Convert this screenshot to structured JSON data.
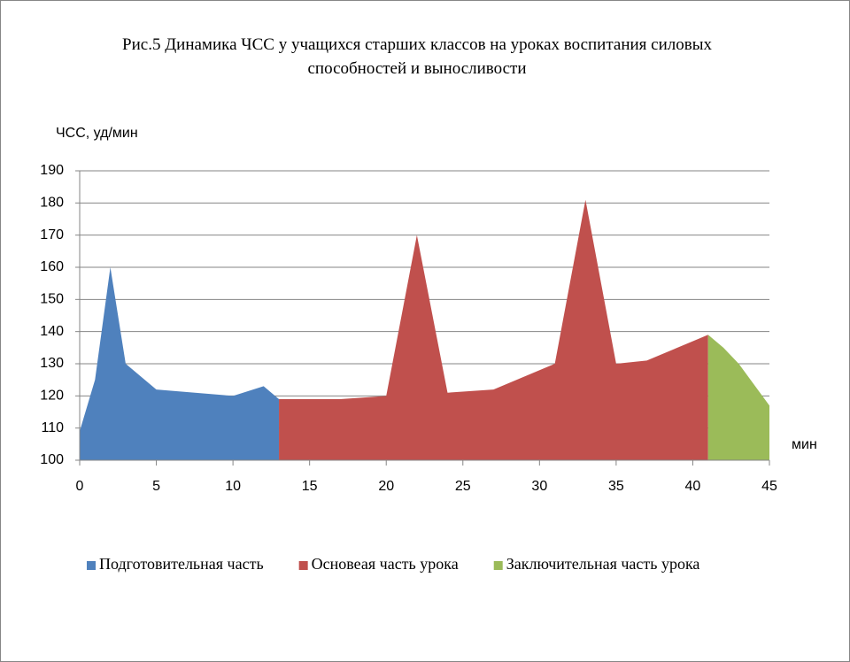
{
  "chart_data": {
    "type": "area",
    "title": "Рис.5  Динамика ЧСС у учащихся старших классов на уроках воспитания силовых способностей и выносливости",
    "y_label": "ЧСС, уд/мин",
    "x_label": "мин",
    "xlim": [
      0,
      45
    ],
    "xticks": [
      0,
      5,
      10,
      15,
      20,
      25,
      30,
      35,
      40,
      45
    ],
    "ylim": [
      100,
      190
    ],
    "yticks": [
      100,
      110,
      120,
      130,
      140,
      150,
      160,
      170,
      180,
      190
    ],
    "grid": true,
    "legend": "bottom",
    "series": [
      {
        "name": "Подготовительная часть",
        "color": "#4f81bd",
        "x": [
          0,
          1,
          2,
          3,
          5,
          10,
          12,
          13
        ],
        "values": [
          109,
          125,
          160,
          130,
          122,
          120,
          123,
          119
        ]
      },
      {
        "name": "Основеая часть урока",
        "color": "#c0504d",
        "x": [
          13,
          17,
          20,
          22,
          24,
          27,
          31,
          33,
          35,
          37,
          41
        ],
        "values": [
          119,
          119,
          120,
          170,
          121,
          122,
          130,
          181,
          130,
          131,
          139
        ]
      },
      {
        "name": "Заключительная часть урока",
        "color": "#9bbb59",
        "x": [
          41,
          42,
          43,
          45
        ],
        "values": [
          139,
          135,
          130,
          117
        ]
      }
    ]
  }
}
